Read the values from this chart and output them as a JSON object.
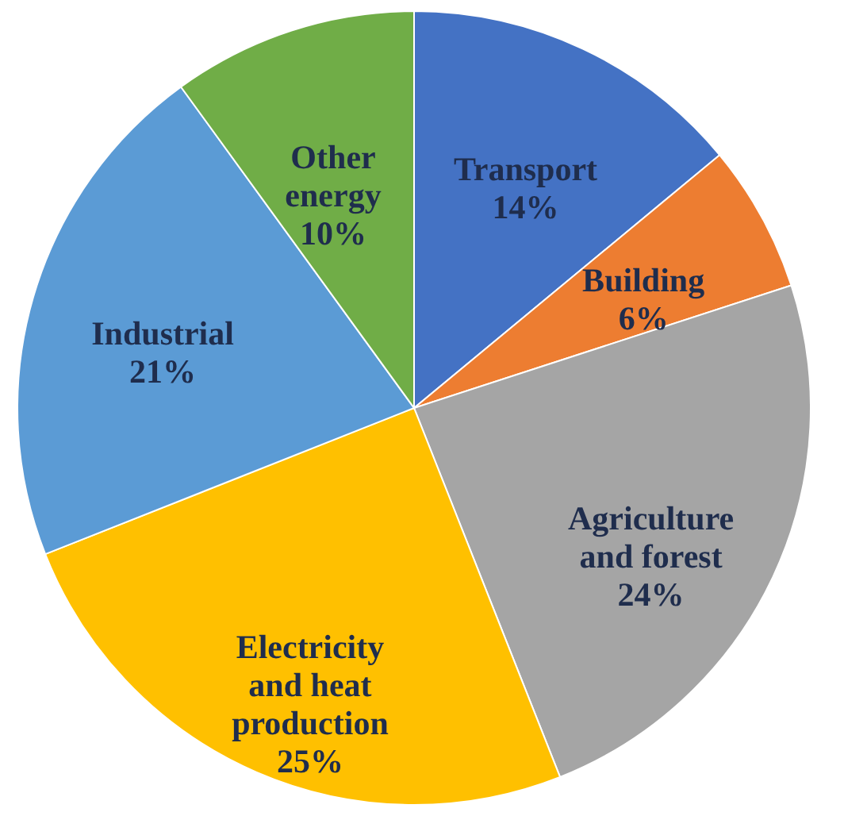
{
  "chart_data": {
    "type": "pie",
    "categories": [
      "Transport",
      "Building",
      "Agriculture and forest",
      "Electricity and heat production",
      "Industrial",
      "Other energy"
    ],
    "values": [
      14,
      6,
      24,
      25,
      21,
      10
    ],
    "value_labels": [
      "14%",
      "6%",
      "24%",
      "25%",
      "21%",
      "10%"
    ],
    "colors": [
      "#4472c4",
      "#ed7d31",
      "#a5a5a5",
      "#ffc000",
      "#5b9bd5",
      "#70ad47"
    ],
    "legend": false
  }
}
